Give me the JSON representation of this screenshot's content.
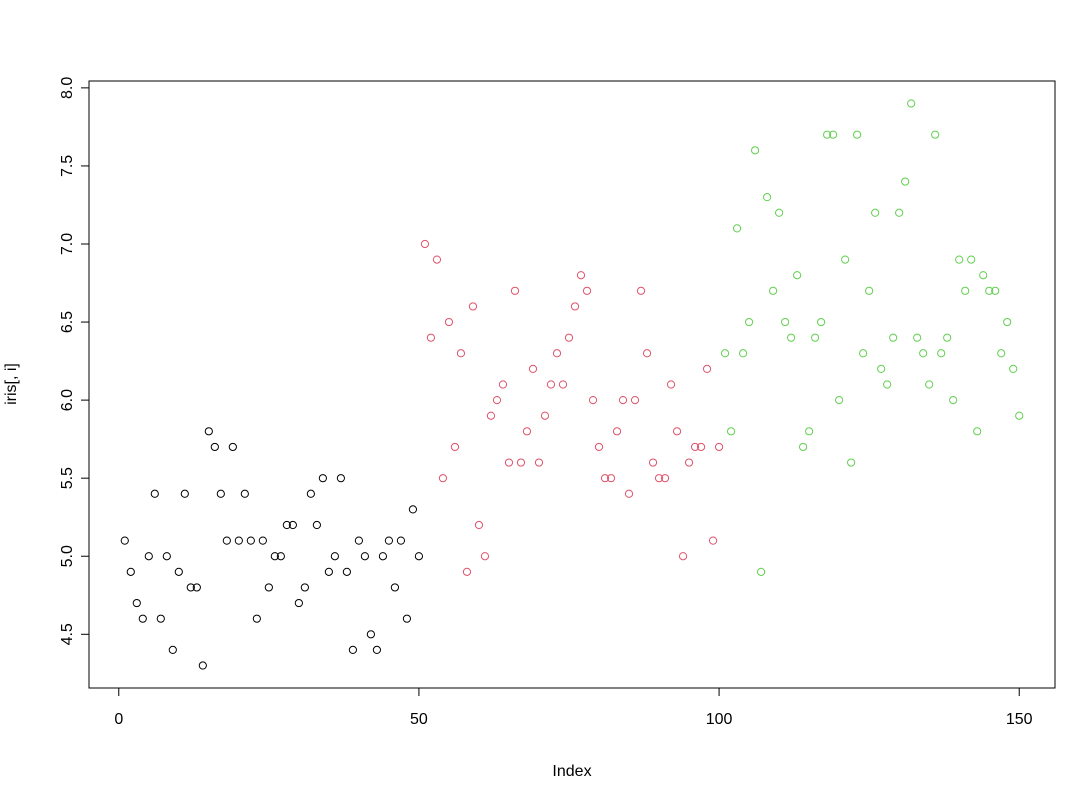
{
  "chart_data": {
    "type": "scatter",
    "xlabel": "Index",
    "ylabel": "iris[, i]",
    "xlim": [
      -4.96,
      155.96
    ],
    "ylim": [
      4.156,
      8.044
    ],
    "xticks": [
      0,
      50,
      100,
      150
    ],
    "yticks": [
      {
        "value": 4.5,
        "label": "4.5"
      },
      {
        "value": 5,
        "label": "5.0"
      },
      {
        "value": 5.5,
        "label": "5.5"
      },
      {
        "value": 6,
        "label": "6.0"
      },
      {
        "value": 6.5,
        "label": "6.5"
      },
      {
        "value": 7,
        "label": "7.0"
      },
      {
        "value": 7.5,
        "label": "7.5"
      },
      {
        "value": 8,
        "label": "8.0"
      }
    ],
    "series": [
      {
        "color": "#000000",
        "x": [
          1,
          2,
          3,
          4,
          5,
          6,
          7,
          8,
          9,
          10,
          11,
          12,
          13,
          14,
          15,
          16,
          17,
          18,
          19,
          20,
          21,
          22,
          23,
          24,
          25,
          26,
          27,
          28,
          29,
          30,
          31,
          32,
          33,
          34,
          35,
          36,
          37,
          38,
          39,
          40,
          41,
          42,
          43,
          44,
          45,
          46,
          47,
          48,
          49,
          50
        ],
        "values": [
          5.1,
          4.9,
          4.7,
          4.6,
          5.0,
          5.4,
          4.6,
          5.0,
          4.4,
          4.9,
          5.4,
          4.8,
          4.8,
          4.3,
          5.8,
          5.7,
          5.4,
          5.1,
          5.7,
          5.1,
          5.4,
          5.1,
          4.6,
          5.1,
          4.8,
          5.0,
          5.0,
          5.2,
          5.2,
          4.7,
          4.8,
          5.4,
          5.2,
          5.5,
          4.9,
          5.0,
          5.5,
          4.9,
          4.4,
          5.1,
          5.0,
          4.5,
          4.4,
          5.0,
          5.1,
          4.8,
          5.1,
          4.6,
          5.3,
          5.0
        ]
      },
      {
        "color": "#DF536B",
        "x": [
          51,
          52,
          53,
          54,
          55,
          56,
          57,
          58,
          59,
          60,
          61,
          62,
          63,
          64,
          65,
          66,
          67,
          68,
          69,
          70,
          71,
          72,
          73,
          74,
          75,
          76,
          77,
          78,
          79,
          80,
          81,
          82,
          83,
          84,
          85,
          86,
          87,
          88,
          89,
          90,
          91,
          92,
          93,
          94,
          95,
          96,
          97,
          98,
          99,
          100
        ],
        "values": [
          7.0,
          6.4,
          6.9,
          5.5,
          6.5,
          5.7,
          6.3,
          4.9,
          6.6,
          5.2,
          5.0,
          5.9,
          6.0,
          6.1,
          5.6,
          6.7,
          5.6,
          5.8,
          6.2,
          5.6,
          5.9,
          6.1,
          6.3,
          6.1,
          6.4,
          6.6,
          6.8,
          6.7,
          6.0,
          5.7,
          5.5,
          5.5,
          5.8,
          6.0,
          5.4,
          6.0,
          6.7,
          6.3,
          5.6,
          5.5,
          5.5,
          6.1,
          5.8,
          5.0,
          5.6,
          5.7,
          5.7,
          6.2,
          5.1,
          5.7
        ]
      },
      {
        "color": "#61D04F",
        "x": [
          101,
          102,
          103,
          104,
          105,
          106,
          107,
          108,
          109,
          110,
          111,
          112,
          113,
          114,
          115,
          116,
          117,
          118,
          119,
          120,
          121,
          122,
          123,
          124,
          125,
          126,
          127,
          128,
          129,
          130,
          131,
          132,
          133,
          134,
          135,
          136,
          137,
          138,
          139,
          140,
          141,
          142,
          143,
          144,
          145,
          146,
          147,
          148,
          149,
          150
        ],
        "values": [
          6.3,
          5.8,
          7.1,
          6.3,
          6.5,
          7.6,
          4.9,
          7.3,
          6.7,
          7.2,
          6.5,
          6.4,
          6.8,
          5.7,
          5.8,
          6.4,
          6.5,
          7.7,
          7.7,
          6.0,
          6.9,
          5.6,
          7.7,
          6.3,
          6.7,
          7.2,
          6.2,
          6.1,
          6.4,
          7.2,
          7.4,
          7.9,
          6.4,
          6.3,
          6.1,
          7.7,
          6.3,
          6.4,
          6.0,
          6.9,
          6.7,
          6.9,
          5.8,
          6.8,
          6.7,
          6.7,
          6.3,
          6.5,
          6.2,
          5.9
        ]
      }
    ]
  }
}
